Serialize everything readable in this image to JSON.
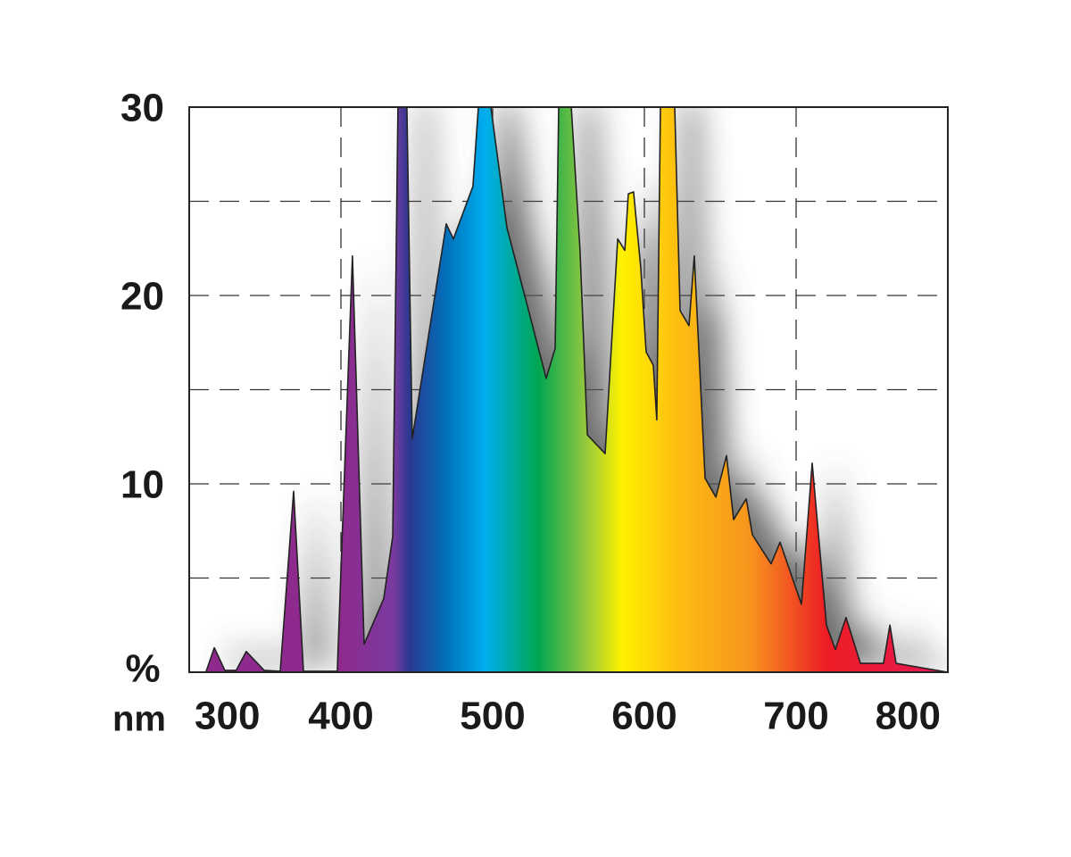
{
  "chart_data": {
    "type": "area",
    "y_axis_label": "%",
    "x_axis_label": "nm",
    "x": [
      311,
      316.5,
      323.5,
      331,
      337.6,
      349.4,
      360,
      368.8,
      375.3,
      397.6,
      407.6,
      415.3,
      428.2,
      434.1,
      437.6,
      443.5,
      447,
      469.4,
      474.1,
      487,
      490.6,
      498.8,
      509.4,
      522.4,
      535.3,
      541.2,
      543.5,
      551.8,
      557.6,
      562.4,
      574.1,
      582.4,
      587.1,
      589.4,
      592.9,
      597.6,
      601.2,
      605.9,
      608.2,
      610.6,
      620,
      623.5,
      629.4,
      632.9,
      640,
      647.1,
      654.1,
      658.8,
      667.1,
      671.2,
      683.5,
      689.4,
      703.5,
      710.6,
      720,
      725.9,
      732.9,
      742.4,
      757.6,
      761.8,
      765.9,
      800
    ],
    "values": [
      0,
      1.3,
      0.1,
      0.1,
      1.1,
      0.1,
      0.05,
      9.6,
      0.05,
      0.05,
      22.1,
      1.5,
      3.9,
      7.2,
      30,
      30,
      12.4,
      23.8,
      23,
      25.8,
      30,
      30,
      23.6,
      19.6,
      15.6,
      17.2,
      30,
      30,
      22.4,
      12.6,
      11.6,
      23,
      22.4,
      25.4,
      25.5,
      21.5,
      17,
      16.3,
      13.4,
      30,
      30,
      19.2,
      18.4,
      22.1,
      10.3,
      9.3,
      11.5,
      8.1,
      9.2,
      7.3,
      5.75,
      6.9,
      3.6,
      11.1,
      2.5,
      1.2,
      2.9,
      0.47,
      0.47,
      2.5,
      0.47,
      0
    ],
    "color": "#222222",
    "xlim": [
      300,
      800
    ],
    "ylim": [
      0,
      30
    ],
    "xticks": [
      300,
      400,
      500,
      600,
      700,
      800
    ],
    "yticks": [
      10,
      20,
      30
    ],
    "xgrid": [
      400,
      500,
      600,
      700
    ],
    "ygrid": [
      5,
      10,
      15,
      20,
      25
    ],
    "grid": true
  }
}
